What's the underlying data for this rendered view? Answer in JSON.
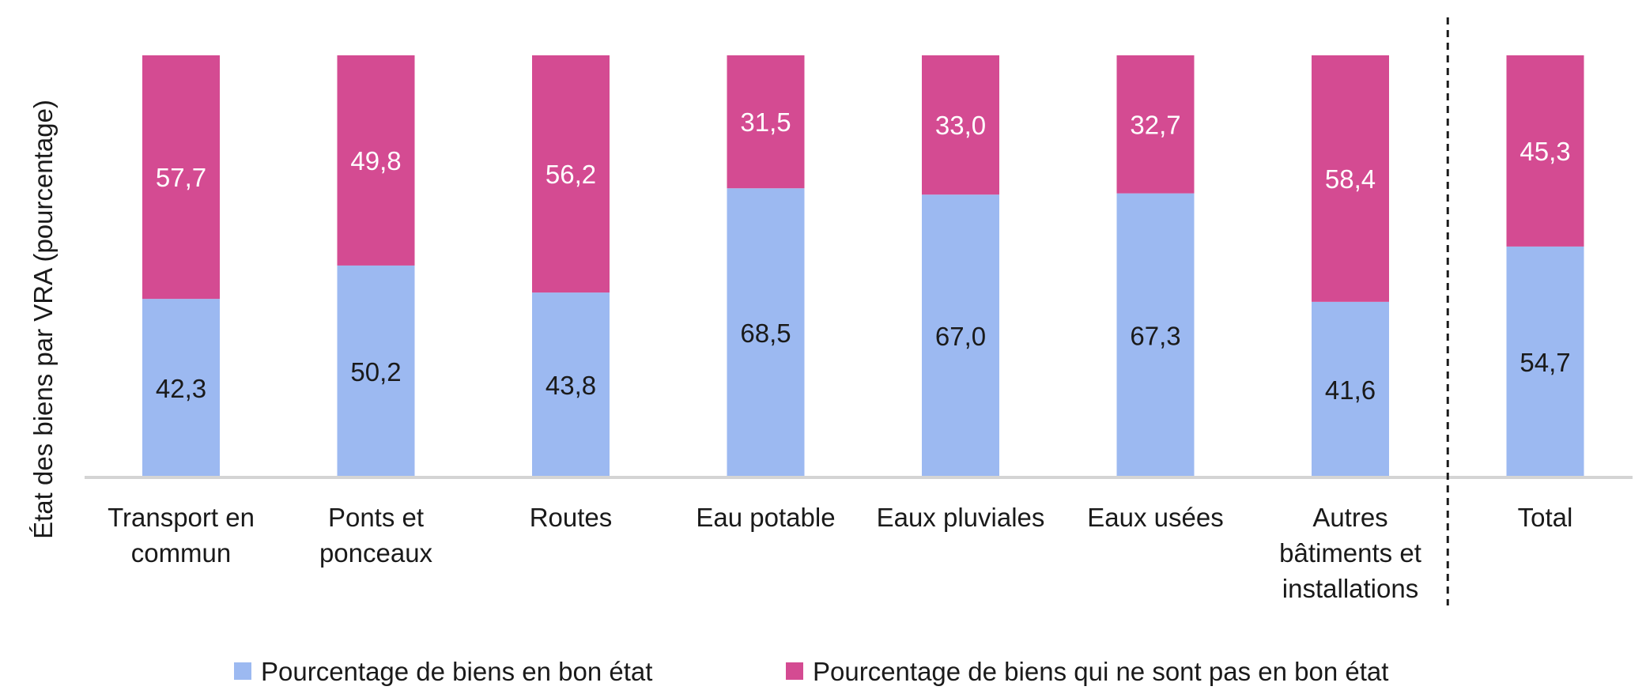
{
  "chart_data": {
    "type": "bar",
    "stacked": true,
    "ylabel": "État des biens par VRA (pourcentage)",
    "ylim": [
      0,
      100
    ],
    "grid": false,
    "legend_position": "bottom",
    "categories": [
      [
        "Transport en",
        "commun"
      ],
      [
        "Ponts et",
        "ponceaux"
      ],
      [
        "Routes"
      ],
      [
        "Eau potable"
      ],
      [
        "Eaux pluviales"
      ],
      [
        "Eaux usées"
      ],
      [
        "Autres",
        "bâtiments et",
        "installations"
      ],
      [
        "Total"
      ]
    ],
    "series": [
      {
        "name": "Pourcentage de biens en bon état",
        "color": "#9cb9f1",
        "label_color": "#1a1a1a",
        "values": [
          42.3,
          50.2,
          43.8,
          68.5,
          67.0,
          67.3,
          41.6,
          54.7
        ],
        "labels": [
          "42,3",
          "50,2",
          "43,8",
          "68,5",
          "67,0",
          "67,3",
          "41,6",
          "54,7"
        ]
      },
      {
        "name": "Pourcentage de biens qui ne sont pas en bon état",
        "color": "#d44b92",
        "label_color": "#ffffff",
        "values": [
          57.7,
          49.8,
          56.2,
          31.5,
          33.0,
          32.7,
          58.4,
          45.3
        ],
        "labels": [
          "57,7",
          "49,8",
          "56,2",
          "31,5",
          "33,0",
          "32,7",
          "58,4",
          "45,3"
        ]
      }
    ],
    "separator_after_category": 6
  }
}
